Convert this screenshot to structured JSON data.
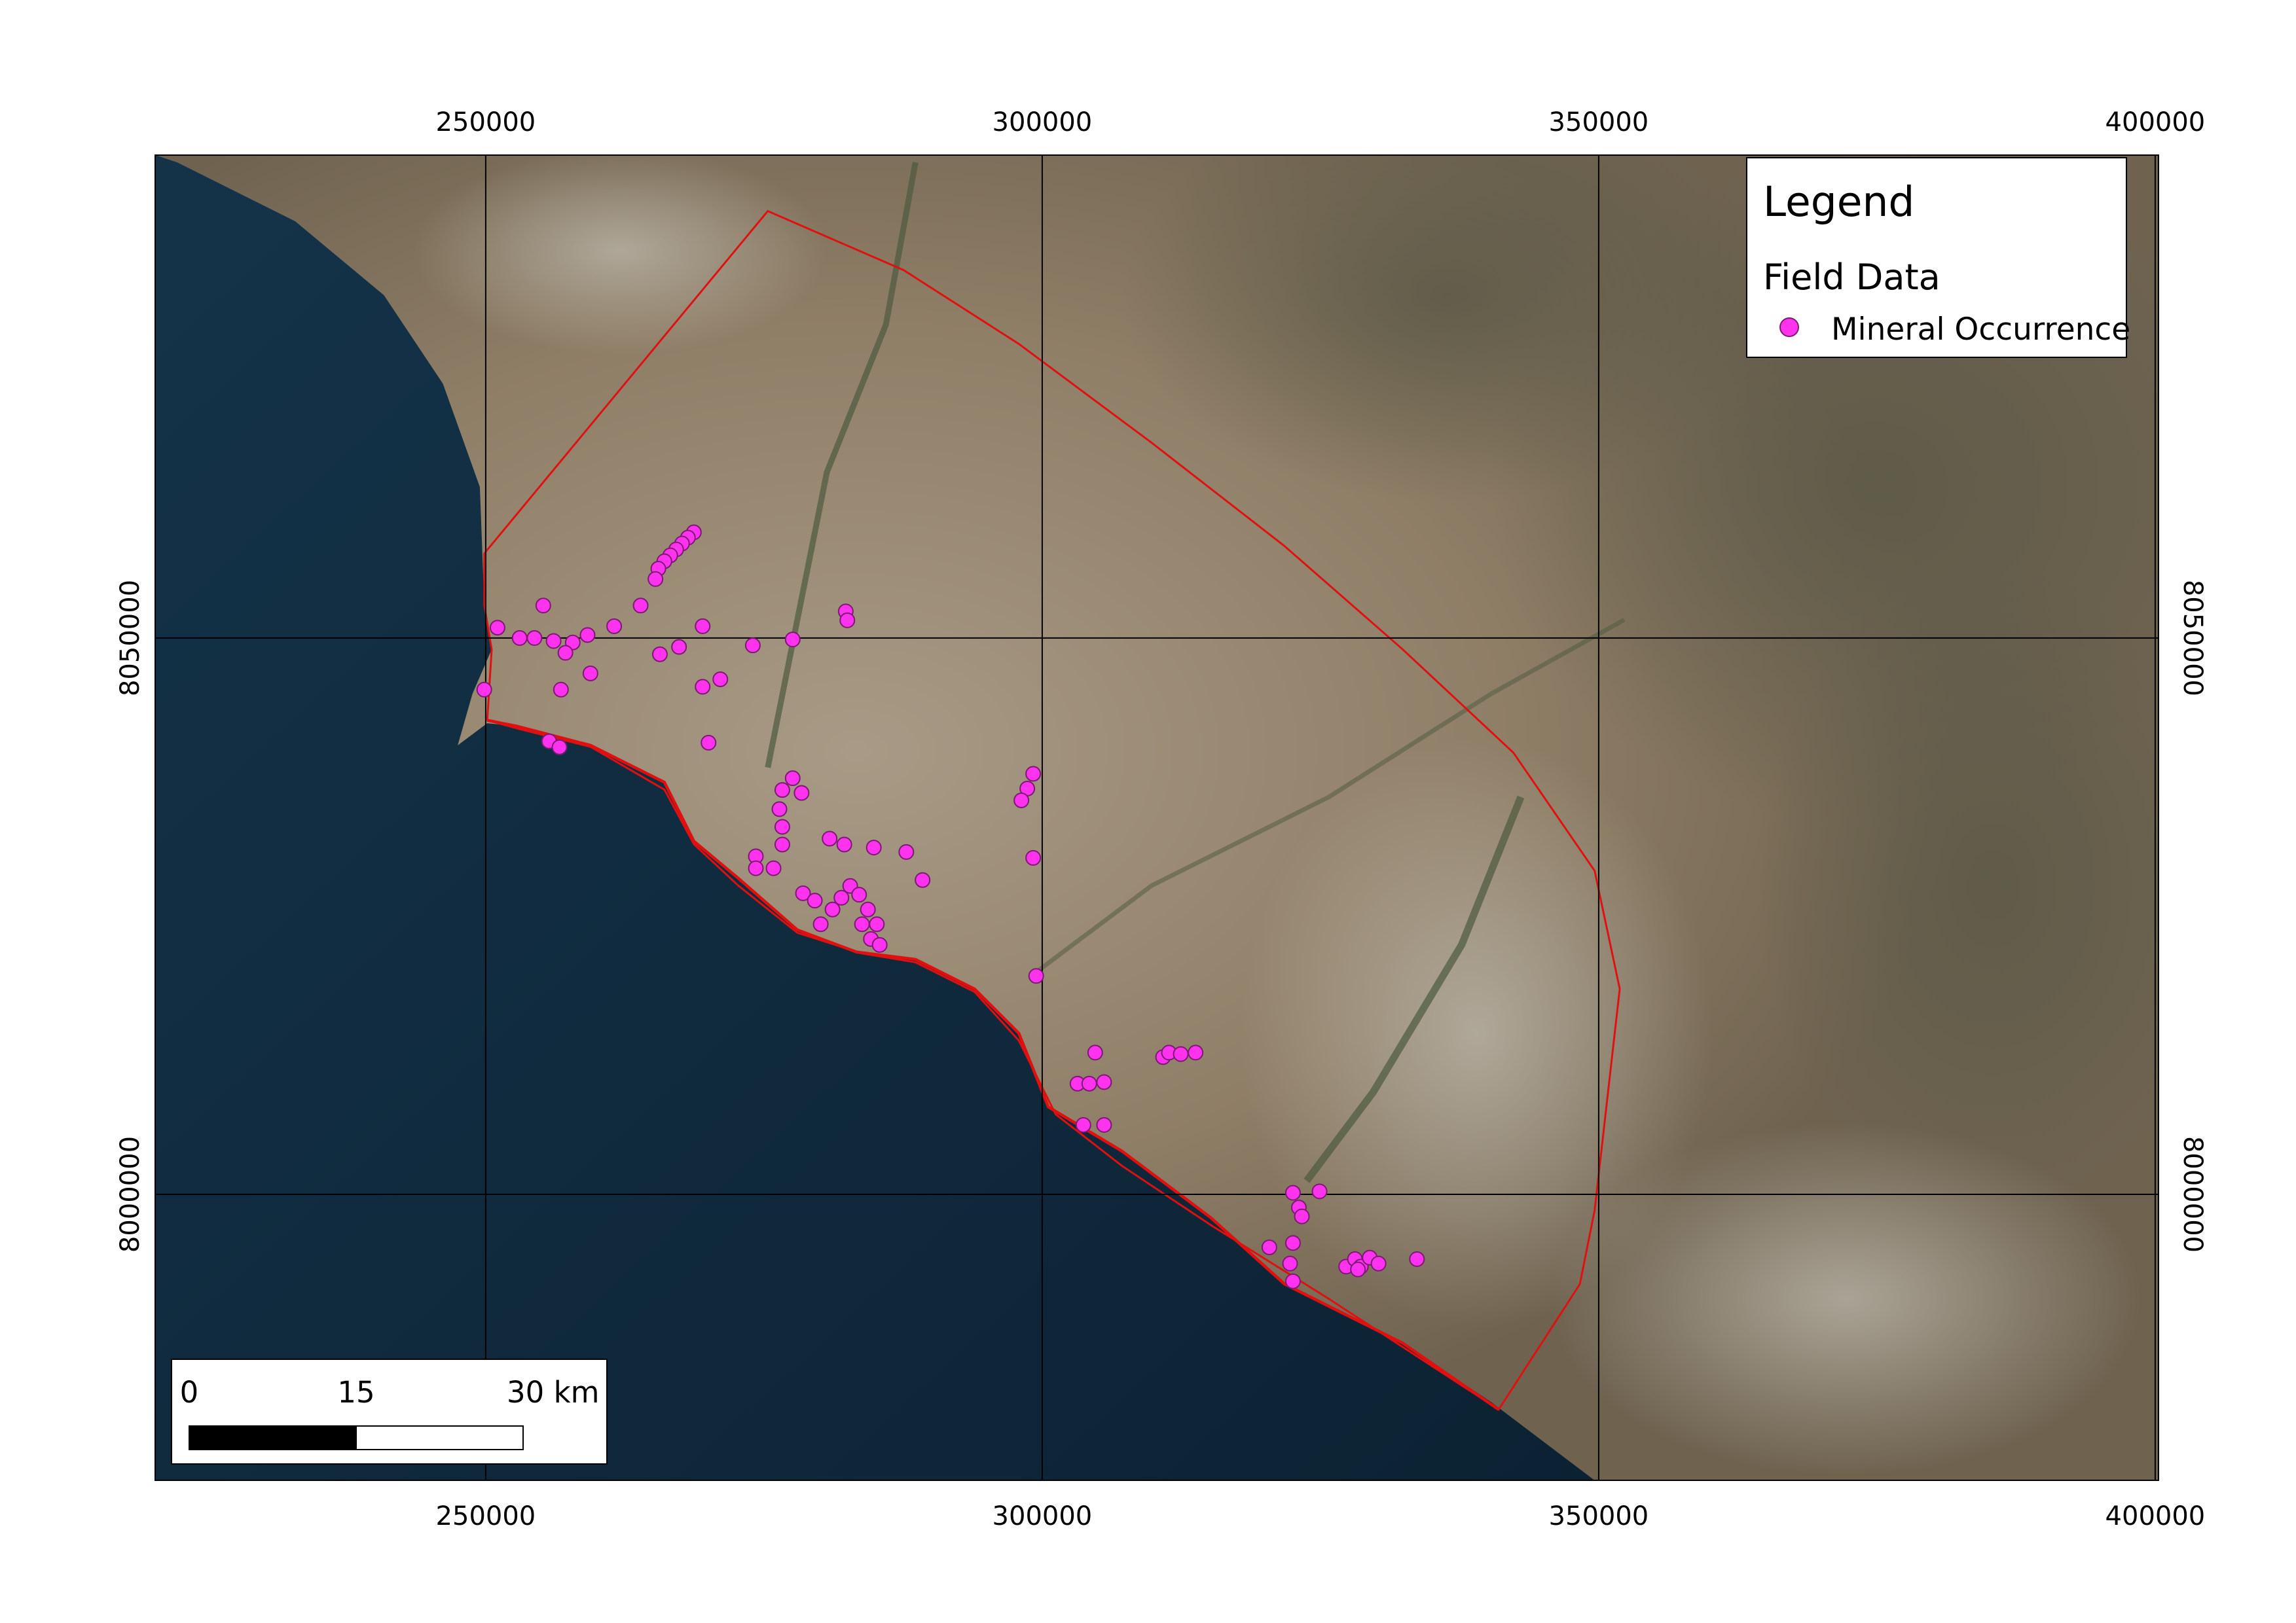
{
  "chart_data": {
    "type": "map",
    "xlim": [
      220300,
      400300
    ],
    "ylim": [
      7974300,
      8093400
    ],
    "xticks": [
      250000,
      300000,
      350000,
      400000
    ],
    "yticks": [
      8000000,
      8050000
    ],
    "grid": true,
    "legend": {
      "title": "Legend",
      "group": "Field Data",
      "position": "upper right"
    },
    "scale_bar": {
      "labels": [
        "0",
        "15",
        "30 km"
      ]
    },
    "series": [
      {
        "name": "Mineral Occurrence",
        "color": "#ff33ee",
        "x": [
          268700,
          268170,
          267640,
          267110,
          266580,
          266050,
          265510,
          265250,
          263920,
          255170,
          251060,
          253050,
          254380,
          256100,
          257820,
          259150,
          261540,
          265650,
          267370,
          269490,
          274000,
          277580,
          257160,
          259410,
          256760,
          249870,
          271080,
          269490,
          282350,
          282490,
          255700,
          256630,
          270020,
          277580,
          276650,
          278380,
          276390,
          276650,
          276650,
          274270,
          274270,
          275860,
          280900,
          282220,
          284870,
          287790,
          289250,
          278510,
          279570,
          280100,
          281160,
          281960,
          282750,
          283550,
          284340,
          283810,
          285140,
          284610,
          285400,
          299190,
          298660,
          298130,
          299190,
          299460,
          304760,
          303170,
          304230,
          305560,
          303700,
          305560,
          310860,
          311390,
          312450,
          313780,
          322530,
          324920,
          323060,
          323330,
          320410,
          322530,
          322270,
          322530,
          327310,
          328100,
          328630,
          329430,
          330220,
          328370,
          333670
        ],
        "y": [
          8059500,
          8059020,
          8058490,
          8057960,
          8057430,
          8056900,
          8056230,
          8055300,
          8052920,
          8052920,
          8050930,
          8050000,
          8050000,
          8049730,
          8049600,
          8050270,
          8051060,
          8048540,
          8049200,
          8051060,
          8049340,
          8049870,
          8048670,
          8046820,
          8045360,
          8045360,
          8046290,
          8045620,
          8052390,
          8051590,
          8040720,
          8040190,
          8040590,
          8037400,
          8036340,
          8036080,
          8034620,
          8033030,
          8031440,
          8030380,
          8029310,
          8029310,
          8031970,
          8031440,
          8031170,
          8030770,
          8028250,
          8027060,
          8026400,
          8024280,
          8025600,
          8026660,
          8027720,
          8026930,
          8025600,
          8024280,
          8024280,
          8022950,
          8022420,
          8037800,
          8036470,
          8035410,
          8030240,
          8019630,
          8012740,
          8009950,
          8009950,
          8010090,
          8006240,
          8006240,
          8012340,
          8012740,
          8012610,
          8012740,
          8000140,
          8000270,
          7998820,
          7998020,
          7995240,
          7995630,
          7993780,
          7992190,
          7993510,
          7994180,
          7993510,
          7994310,
          7993780,
          7993250,
          7994180
        ]
      }
    ]
  }
}
